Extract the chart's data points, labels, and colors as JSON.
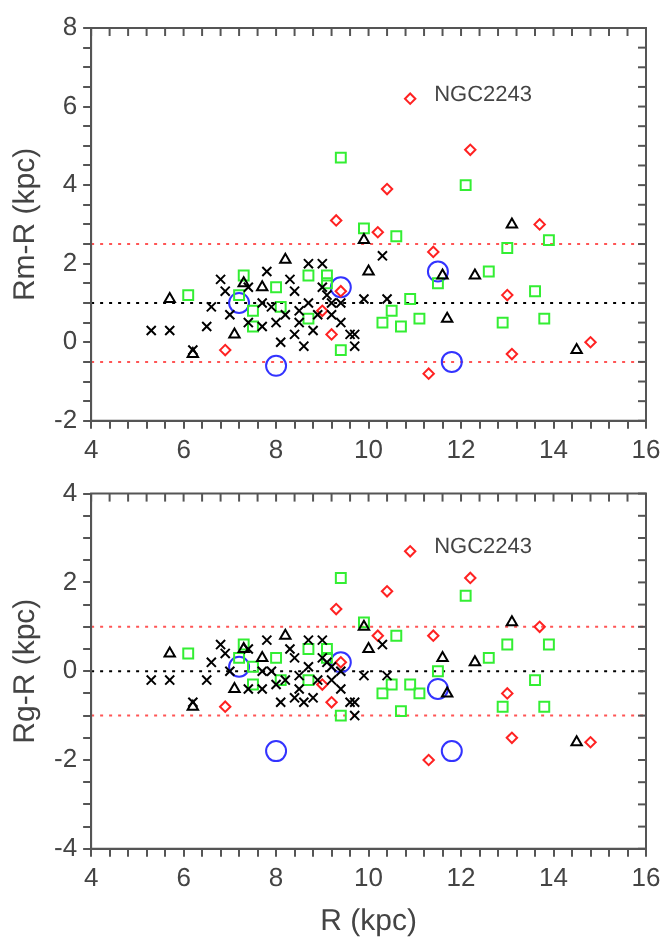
{
  "chart_data": [
    {
      "type": "scatter",
      "ylabel": "Rm-R (kpc)",
      "xlim": [
        4,
        16
      ],
      "ylim": [
        -2,
        8
      ],
      "xticks": [
        4,
        {
          "value": 4.4,
          "label": null
        },
        {
          "value": 4.8,
          "label": null
        },
        {
          "value": 5.2,
          "label": null
        },
        {
          "value": 5.6,
          "label": null
        },
        6,
        {
          "value": 6.4,
          "label": null
        },
        {
          "value": 6.8,
          "label": null
        },
        {
          "value": 7.2,
          "label": null
        },
        {
          "value": 7.6,
          "label": null
        },
        8,
        {
          "value": 8.4,
          "label": null
        },
        {
          "value": 8.8,
          "label": null
        },
        {
          "value": 9.2,
          "label": null
        },
        {
          "value": 9.6,
          "label": null
        },
        10,
        {
          "value": 10.4,
          "label": null
        },
        {
          "value": 10.8,
          "label": null
        },
        {
          "value": 11.2,
          "label": null
        },
        {
          "value": 11.6,
          "label": null
        },
        12,
        {
          "value": 12.4,
          "label": null
        },
        {
          "value": 12.8,
          "label": null
        },
        {
          "value": 13.2,
          "label": null
        },
        {
          "value": 13.6,
          "label": null
        },
        14,
        {
          "value": 14.4,
          "label": null
        },
        {
          "value": 14.8,
          "label": null
        },
        {
          "value": 15.2,
          "label": null
        },
        {
          "value": 15.6,
          "label": null
        },
        16
      ],
      "yticks": [
        -2,
        {
          "value": -1.5,
          "label": null
        },
        {
          "value": -1,
          "label": null
        },
        {
          "value": -0.5,
          "label": null
        },
        0,
        {
          "value": 0.5,
          "label": null
        },
        {
          "value": 1,
          "label": null
        },
        {
          "value": 1.5,
          "label": null
        },
        2,
        {
          "value": 2.5,
          "label": null
        },
        {
          "value": 3,
          "label": null
        },
        {
          "value": 3.5,
          "label": null
        },
        4,
        {
          "value": 4.5,
          "label": null
        },
        {
          "value": 5,
          "label": null
        },
        {
          "value": 5.5,
          "label": null
        },
        6,
        {
          "value": 6.5,
          "label": null
        },
        {
          "value": 7,
          "label": null
        },
        {
          "value": 7.5,
          "label": null
        },
        8
      ],
      "grid": false,
      "legend": false,
      "ref_lines": [
        {
          "axis": "y",
          "value": 2.5,
          "color": "#ff5555",
          "line_style": "dotted"
        },
        {
          "axis": "y",
          "value": 1,
          "color": "#000000",
          "line_style": "dotted"
        },
        {
          "axis": "y",
          "value": -0.5,
          "color": "#ff5555",
          "line_style": "dotted"
        }
      ],
      "annotations": [
        {
          "text": "NGC2243",
          "x": 10.9,
          "y": 6.2
        }
      ],
      "series": [
        {
          "type": "scatter",
          "color": "#000000",
          "marker": "cross",
          "x": [
            5.3,
            5.7,
            6.5,
            6.6,
            6.8,
            6.9,
            6.2,
            7.0,
            7.4,
            7.8,
            7.7,
            7.7,
            8.0,
            8.3,
            8.4,
            8.5,
            8.5,
            8.4,
            8.7,
            8.7,
            9.0,
            9.0,
            8.9,
            9.2,
            9.2,
            9.4,
            9.4,
            9.6,
            9.7,
            9.7,
            9.9,
            10.3,
            10.4,
            8.1,
            7.4,
            7.9,
            8.6,
            8.8,
            8.2,
            9.1
          ],
          "values": [
            0.3,
            0.3,
            0.4,
            0.9,
            1.6,
            1.3,
            -0.2,
            0.7,
            1.4,
            1.8,
            1.0,
            0.4,
            0.5,
            1.6,
            1.3,
            0.8,
            0.5,
            0.2,
            1.0,
            2.0,
            2.0,
            1.4,
            0.7,
            1.0,
            0.7,
            1.0,
            0.5,
            0.2,
            -0.1,
            0.2,
            1.1,
            2.2,
            1.1,
            0.0,
            0.5,
            0.9,
            -0.1,
            0.3,
            0.7,
            1.2
          ]
        },
        {
          "type": "scatter",
          "color": "#000000",
          "marker": "triangle",
          "x": [
            13.1,
            9.9,
            8.2,
            10.0,
            12.3,
            11.6,
            11.7,
            5.7,
            7.3,
            7.1,
            6.2,
            14.5,
            7.7
          ],
          "values": [
            3.0,
            2.6,
            2.1,
            1.8,
            1.7,
            1.7,
            0.6,
            1.1,
            1.5,
            0.2,
            -0.3,
            -0.2,
            1.4
          ]
        },
        {
          "type": "scatter",
          "color": "#33ee33",
          "marker": "square",
          "x": [
            9.4,
            12.1,
            9.9,
            10.6,
            13.9,
            13.0,
            12.6,
            11.5,
            13.6,
            10.9,
            10.5,
            10.3,
            11.1,
            10.7,
            12.9,
            13.8,
            9.4,
            6.1,
            7.3,
            7.2,
            7.5,
            7.5,
            8.0,
            8.1,
            8.7,
            9.1,
            9.1,
            8.7
          ],
          "values": [
            4.7,
            4.0,
            2.9,
            2.7,
            2.6,
            2.4,
            1.8,
            1.5,
            1.3,
            1.1,
            0.8,
            0.5,
            0.6,
            0.4,
            0.5,
            0.6,
            -0.2,
            1.2,
            1.7,
            1.2,
            0.8,
            0.4,
            1.4,
            0.9,
            1.7,
            1.7,
            1.5,
            0.6
          ]
        },
        {
          "type": "scatter",
          "color": "#ff2222",
          "marker": "diamond",
          "x": [
            10.9,
            12.2,
            10.4,
            9.3,
            10.2,
            13.7,
            11.4,
            13.0,
            9.4,
            9.2,
            6.9,
            11.3,
            13.1,
            14.8,
            9.0
          ],
          "values": [
            6.2,
            4.9,
            3.9,
            3.1,
            2.8,
            3.0,
            2.3,
            1.2,
            1.3,
            0.2,
            -0.2,
            -0.8,
            -0.3,
            0.0,
            0.8
          ]
        },
        {
          "type": "scatter",
          "color": "#3333ff",
          "marker": "circle",
          "x": [
            7.2,
            9.4,
            8.0,
            11.5,
            11.8
          ],
          "values": [
            1.0,
            1.4,
            -0.6,
            1.8,
            -0.5
          ]
        }
      ]
    },
    {
      "type": "scatter",
      "xlabel": "R (kpc)",
      "ylabel": "Rg-R (kpc)",
      "xlim": [
        4,
        16
      ],
      "ylim": [
        -4,
        4
      ],
      "xticks": [
        4,
        {
          "value": 4.4,
          "label": null
        },
        {
          "value": 4.8,
          "label": null
        },
        {
          "value": 5.2,
          "label": null
        },
        {
          "value": 5.6,
          "label": null
        },
        6,
        {
          "value": 6.4,
          "label": null
        },
        {
          "value": 6.8,
          "label": null
        },
        {
          "value": 7.2,
          "label": null
        },
        {
          "value": 7.6,
          "label": null
        },
        8,
        {
          "value": 8.4,
          "label": null
        },
        {
          "value": 8.8,
          "label": null
        },
        {
          "value": 9.2,
          "label": null
        },
        {
          "value": 9.6,
          "label": null
        },
        10,
        {
          "value": 10.4,
          "label": null
        },
        {
          "value": 10.8,
          "label": null
        },
        {
          "value": 11.2,
          "label": null
        },
        {
          "value": 11.6,
          "label": null
        },
        12,
        {
          "value": 12.4,
          "label": null
        },
        {
          "value": 12.8,
          "label": null
        },
        {
          "value": 13.2,
          "label": null
        },
        {
          "value": 13.6,
          "label": null
        },
        14,
        {
          "value": 14.4,
          "label": null
        },
        {
          "value": 14.8,
          "label": null
        },
        {
          "value": 15.2,
          "label": null
        },
        {
          "value": 15.6,
          "label": null
        },
        16
      ],
      "yticks": [
        -4,
        {
          "value": -3.5,
          "label": null
        },
        {
          "value": -3,
          "label": null
        },
        {
          "value": -2.5,
          "label": null
        },
        -2,
        {
          "value": -1.5,
          "label": null
        },
        {
          "value": -1,
          "label": null
        },
        {
          "value": -0.5,
          "label": null
        },
        0,
        {
          "value": 0.5,
          "label": null
        },
        {
          "value": 1,
          "label": null
        },
        {
          "value": 1.5,
          "label": null
        },
        2,
        {
          "value": 2.5,
          "label": null
        },
        {
          "value": 3,
          "label": null
        },
        {
          "value": 3.5,
          "label": null
        },
        4
      ],
      "grid": false,
      "legend": false,
      "ref_lines": [
        {
          "axis": "y",
          "value": 1,
          "color": "#ff5555",
          "line_style": "dotted"
        },
        {
          "axis": "y",
          "value": 0,
          "color": "#000000",
          "line_style": "dotted"
        },
        {
          "axis": "y",
          "value": -1,
          "color": "#ff5555",
          "line_style": "dotted"
        }
      ],
      "annotations": [
        {
          "text": "NGC2243",
          "x": 10.9,
          "y": 2.7
        }
      ],
      "series": [
        {
          "type": "scatter",
          "color": "#000000",
          "marker": "cross",
          "x": [
            5.3,
            5.7,
            6.5,
            6.6,
            6.8,
            6.9,
            6.2,
            7.0,
            7.4,
            7.8,
            7.7,
            7.7,
            8.0,
            8.3,
            8.4,
            8.5,
            8.5,
            8.4,
            8.7,
            8.7,
            9.0,
            9.0,
            8.9,
            9.2,
            9.2,
            9.4,
            9.4,
            9.6,
            9.7,
            9.7,
            9.9,
            10.3,
            10.4,
            8.1,
            7.4,
            7.9,
            8.6,
            8.8,
            8.2,
            9.1
          ],
          "values": [
            -0.2,
            -0.2,
            -0.2,
            0.2,
            0.6,
            0.4,
            -0.7,
            0.0,
            0.5,
            0.7,
            0.0,
            -0.4,
            -0.3,
            0.5,
            0.3,
            -0.1,
            -0.4,
            -0.6,
            0.1,
            0.7,
            0.7,
            0.3,
            -0.2,
            0.1,
            -0.2,
            0.0,
            -0.4,
            -0.7,
            -1.0,
            -0.7,
            -0.1,
            0.6,
            -0.1,
            -0.7,
            -0.4,
            0.0,
            -0.7,
            -0.6,
            -0.2,
            0.2
          ]
        },
        {
          "type": "scatter",
          "color": "#000000",
          "marker": "triangle",
          "x": [
            13.1,
            9.9,
            8.2,
            10.0,
            12.3,
            11.6,
            11.7,
            5.7,
            7.3,
            7.1,
            6.2,
            14.5,
            7.7
          ],
          "values": [
            1.1,
            1.0,
            0.8,
            0.5,
            0.2,
            0.3,
            -0.5,
            0.4,
            0.5,
            -0.4,
            -0.8,
            -1.6,
            0.3
          ]
        },
        {
          "type": "scatter",
          "color": "#33ee33",
          "marker": "square",
          "x": [
            9.4,
            12.1,
            9.9,
            10.6,
            13.9,
            13.0,
            12.6,
            11.5,
            13.6,
            10.9,
            10.5,
            10.3,
            11.1,
            10.7,
            12.9,
            13.8,
            9.4,
            6.1,
            7.3,
            7.2,
            7.5,
            7.5,
            8.0,
            8.1,
            8.7,
            9.1,
            9.1,
            8.7
          ],
          "values": [
            2.1,
            1.7,
            1.1,
            0.8,
            0.6,
            0.6,
            0.3,
            0.0,
            -0.2,
            -0.3,
            -0.3,
            -0.5,
            -0.5,
            -0.9,
            -0.8,
            -0.8,
            -1.0,
            0.4,
            0.6,
            0.3,
            0.1,
            -0.3,
            0.3,
            -0.2,
            0.5,
            0.5,
            0.3,
            -0.2
          ]
        },
        {
          "type": "scatter",
          "color": "#ff2222",
          "marker": "diamond",
          "x": [
            10.9,
            12.2,
            10.4,
            9.3,
            10.2,
            13.7,
            11.4,
            13.0,
            9.4,
            9.2,
            6.9,
            11.3,
            13.1,
            14.8,
            9.0
          ],
          "values": [
            2.7,
            2.1,
            1.8,
            1.4,
            0.8,
            1.0,
            0.8,
            -0.5,
            0.2,
            -0.7,
            -0.8,
            -2.0,
            -1.5,
            -1.6,
            -0.3
          ]
        },
        {
          "type": "scatter",
          "color": "#3333ff",
          "marker": "circle",
          "x": [
            7.2,
            9.4,
            8.0,
            11.5,
            11.8
          ],
          "values": [
            0.1,
            0.2,
            -1.8,
            -0.4,
            -1.8
          ]
        }
      ]
    }
  ]
}
